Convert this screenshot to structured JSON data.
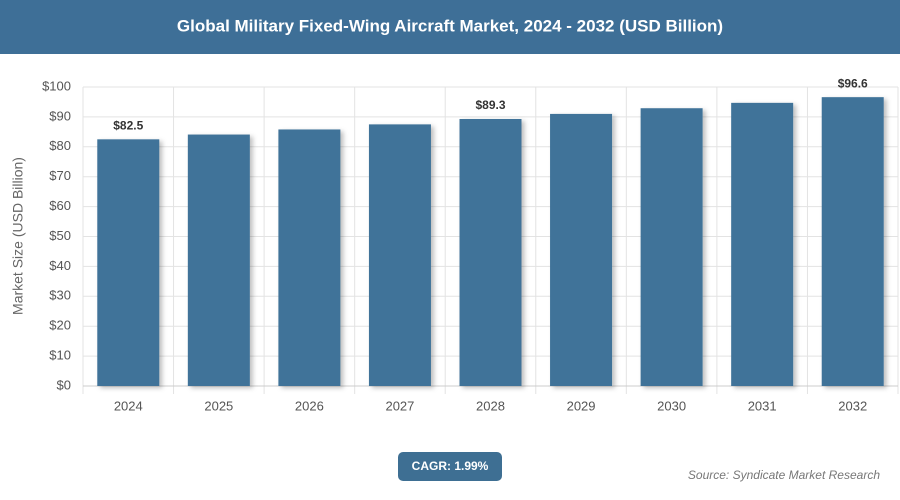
{
  "chart_data": {
    "type": "bar",
    "title": "Global Military Fixed-Wing Aircraft Market, 2024 - 2032 (USD Billion)",
    "y_label": "Market Size (USD Billion)",
    "categories": [
      "2024",
      "2025",
      "2026",
      "2027",
      "2028",
      "2029",
      "2030",
      "2031",
      "2032"
    ],
    "values": [
      82.5,
      84.1,
      85.8,
      87.5,
      89.3,
      91.0,
      92.9,
      94.7,
      96.6
    ],
    "value_labels": [
      "$82.5",
      null,
      null,
      null,
      "$89.3",
      null,
      null,
      null,
      "$96.6"
    ],
    "color": "#3f7399",
    "ylim": [
      0,
      100
    ],
    "yticks": [
      {
        "value": 0,
        "label": "$0"
      },
      {
        "value": 10,
        "label": "$10"
      },
      {
        "value": 20,
        "label": "$20"
      },
      {
        "value": 30,
        "label": "$30"
      },
      {
        "value": 40,
        "label": "$40"
      },
      {
        "value": 50,
        "label": "$50"
      },
      {
        "value": 60,
        "label": "$60"
      },
      {
        "value": 70,
        "label": "$70"
      },
      {
        "value": 80,
        "label": "$80"
      },
      {
        "value": 90,
        "label": "$90"
      },
      {
        "value": 100,
        "label": "$100"
      }
    ],
    "grid": true,
    "cagr": "CAGR: 1.99%",
    "source": "Source: Syndicate Market Research"
  }
}
